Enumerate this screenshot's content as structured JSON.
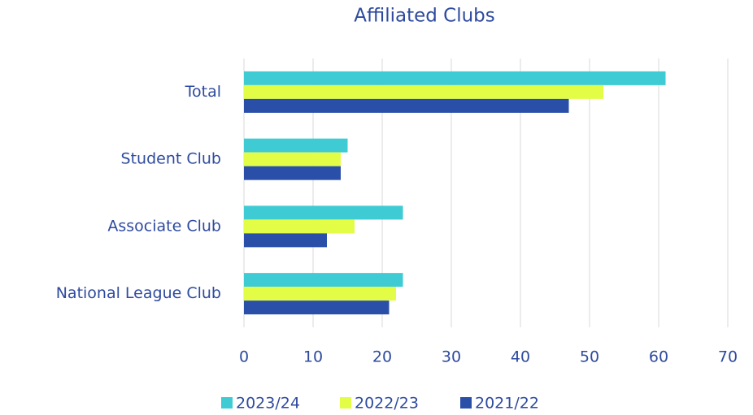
{
  "chart_data": {
    "type": "bar",
    "orientation": "horizontal",
    "title": "Affiliated Clubs",
    "categories": [
      "Total",
      "Student Club",
      "Associate Club",
      "National League Club"
    ],
    "series": [
      {
        "name": "2023/24",
        "color": "#3ecbd3",
        "values": [
          61,
          15,
          23,
          23
        ]
      },
      {
        "name": "2022/23",
        "color": "#e3fd47",
        "values": [
          52,
          14,
          16,
          22
        ]
      },
      {
        "name": "2021/22",
        "color": "#2a4fa8",
        "values": [
          47,
          14,
          12,
          21
        ]
      }
    ],
    "xlim": [
      0,
      70
    ],
    "xticks": [
      0,
      10,
      20,
      30,
      40,
      50,
      60,
      70
    ],
    "grid": true,
    "legend": "bottom"
  }
}
